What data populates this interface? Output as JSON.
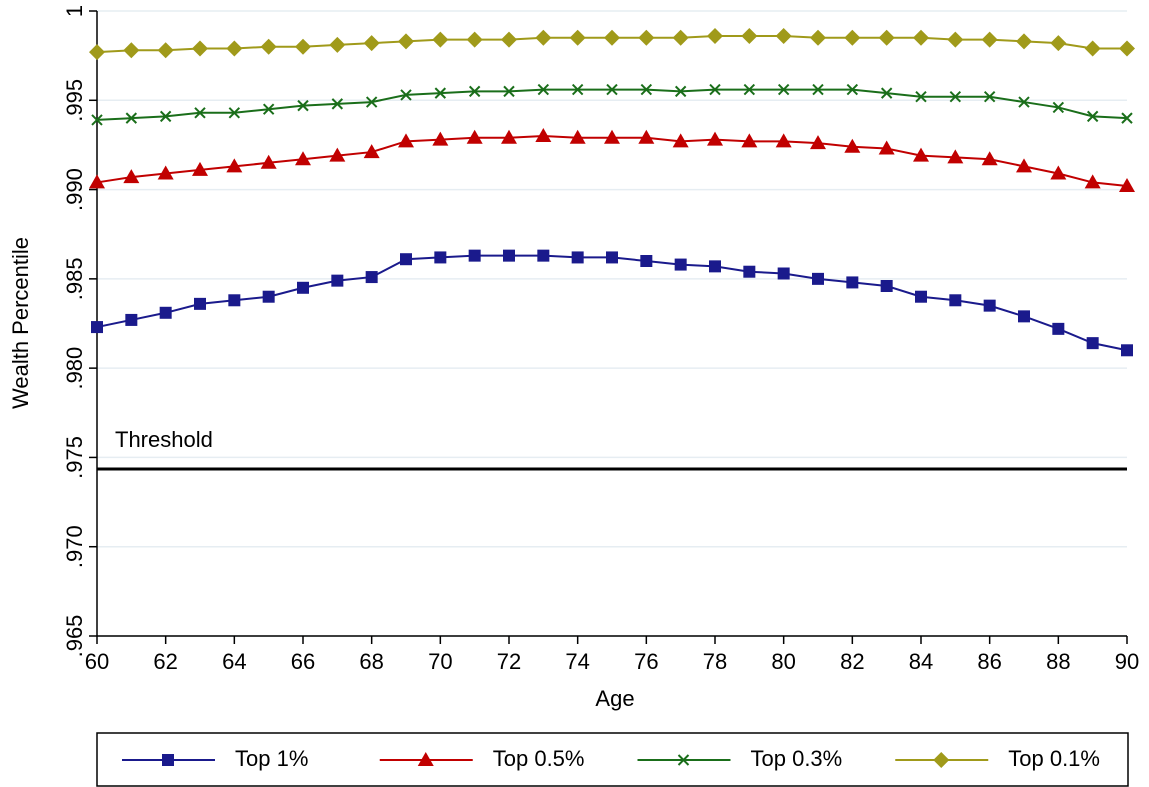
{
  "chart_data": {
    "type": "line",
    "x_label": "Age",
    "y_label": "Wealth Percentile",
    "x": [
      60,
      61,
      62,
      63,
      64,
      65,
      66,
      67,
      68,
      69,
      70,
      71,
      72,
      73,
      74,
      75,
      76,
      77,
      78,
      79,
      80,
      81,
      82,
      83,
      84,
      85,
      86,
      87,
      88,
      89,
      90
    ],
    "series": [
      {
        "name": "Top 1%",
        "color": "#1a1a8c",
        "marker": "square",
        "values": [
          0.9823,
          0.9827,
          0.9831,
          0.9836,
          0.9838,
          0.984,
          0.9845,
          0.9849,
          0.9851,
          0.9861,
          0.9862,
          0.9863,
          0.9863,
          0.9863,
          0.9862,
          0.9862,
          0.986,
          0.9858,
          0.9857,
          0.9854,
          0.9853,
          0.985,
          0.9848,
          0.9846,
          0.984,
          0.9838,
          0.9835,
          0.9829,
          0.9822,
          0.9814,
          0.981
        ]
      },
      {
        "name": "Top 0.5%",
        "color": "#c10000",
        "marker": "triangle",
        "values": [
          0.9904,
          0.9907,
          0.9909,
          0.9911,
          0.9913,
          0.9915,
          0.9917,
          0.9919,
          0.9921,
          0.9927,
          0.9928,
          0.9929,
          0.9929,
          0.993,
          0.9929,
          0.9929,
          0.9929,
          0.9927,
          0.9928,
          0.9927,
          0.9927,
          0.9926,
          0.9924,
          0.9923,
          0.9919,
          0.9918,
          0.9917,
          0.9913,
          0.9909,
          0.9904,
          0.9902
        ]
      },
      {
        "name": "Top 0.3%",
        "color": "#1a6e1a",
        "marker": "x",
        "values": [
          0.9939,
          0.994,
          0.9941,
          0.9943,
          0.9943,
          0.9945,
          0.9947,
          0.9948,
          0.9949,
          0.9953,
          0.9954,
          0.9955,
          0.9955,
          0.9956,
          0.9956,
          0.9956,
          0.9956,
          0.9955,
          0.9956,
          0.9956,
          0.9956,
          0.9956,
          0.9956,
          0.9954,
          0.9952,
          0.9952,
          0.9952,
          0.9949,
          0.9946,
          0.9941,
          0.994
        ]
      },
      {
        "name": "Top 0.1%",
        "color": "#a09a1a",
        "marker": "diamond",
        "values": [
          0.9977,
          0.9978,
          0.9978,
          0.9979,
          0.9979,
          0.998,
          0.998,
          0.9981,
          0.9982,
          0.9983,
          0.9984,
          0.9984,
          0.9984,
          0.9985,
          0.9985,
          0.9985,
          0.9985,
          0.9985,
          0.9986,
          0.9986,
          0.9986,
          0.9985,
          0.9985,
          0.9985,
          0.9985,
          0.9984,
          0.9984,
          0.9983,
          0.9982,
          0.9979,
          0.9979
        ]
      }
    ],
    "reference_line": {
      "value": 0.97435,
      "label": "Threshold",
      "color": "#000000"
    },
    "xlim": [
      60,
      90
    ],
    "xticks": [
      60,
      62,
      64,
      66,
      68,
      70,
      72,
      74,
      76,
      78,
      80,
      82,
      84,
      86,
      88,
      90
    ],
    "ylim": [
      0.965,
      1
    ],
    "yticks": [
      {
        "value": 0.965,
        "label": ".965"
      },
      {
        "value": 0.97,
        "label": ".970"
      },
      {
        "value": 0.975,
        "label": ".975"
      },
      {
        "value": 0.98,
        "label": ".980"
      },
      {
        "value": 0.985,
        "label": ".985"
      },
      {
        "value": 0.99,
        "label": ".990"
      },
      {
        "value": 0.995,
        "label": ".995"
      },
      1
    ],
    "grid": true,
    "legend": "bottom"
  }
}
